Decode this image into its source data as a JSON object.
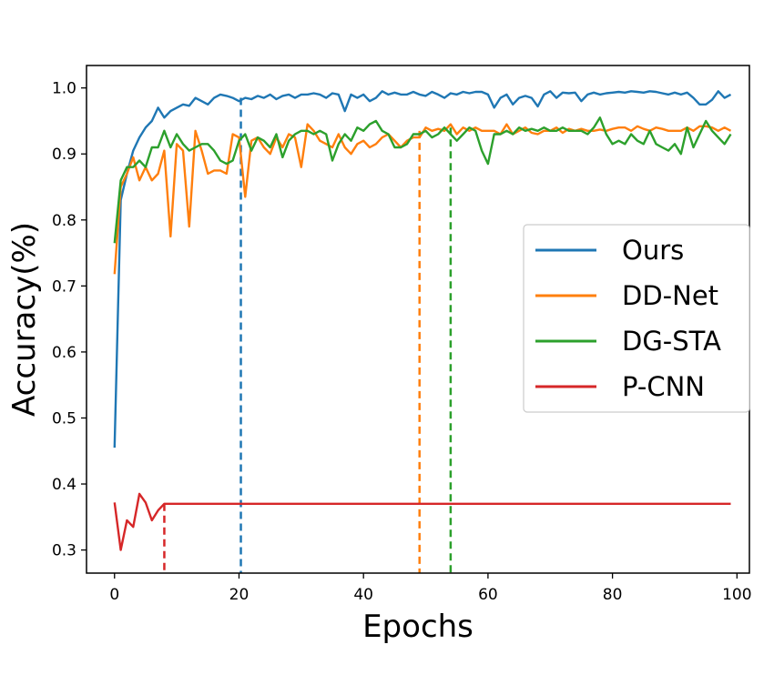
{
  "chart_data": {
    "type": "line",
    "title": "",
    "xlabel": "Epochs",
    "ylabel": "Accuracy(%)",
    "xlim": [
      -4.5,
      102
    ],
    "ylim": [
      0.265,
      1.034
    ],
    "xticks": [
      0,
      20,
      40,
      60,
      80,
      100
    ],
    "yticks": [
      0.3,
      0.4,
      0.5,
      0.6,
      0.7,
      0.8,
      0.9,
      1.0
    ],
    "xtick_labels": [
      "0",
      "20",
      "40",
      "60",
      "80",
      "100"
    ],
    "ytick_labels": [
      "0.3",
      "0.4",
      "0.5",
      "0.6",
      "0.7",
      "0.8",
      "0.9",
      "1.0"
    ],
    "grid": false,
    "legend_position": "right",
    "series": [
      {
        "name": "Ours",
        "color": "#1f77b4",
        "values": [
          0.455,
          0.83,
          0.87,
          0.905,
          0.925,
          0.94,
          0.95,
          0.97,
          0.955,
          0.965,
          0.97,
          0.975,
          0.973,
          0.985,
          0.98,
          0.975,
          0.985,
          0.99,
          0.988,
          0.985,
          0.98,
          0.985,
          0.983,
          0.988,
          0.985,
          0.99,
          0.983,
          0.988,
          0.99,
          0.985,
          0.99,
          0.99,
          0.992,
          0.99,
          0.985,
          0.992,
          0.99,
          0.965,
          0.99,
          0.985,
          0.99,
          0.98,
          0.985,
          0.995,
          0.99,
          0.993,
          0.99,
          0.99,
          0.994,
          0.99,
          0.988,
          0.994,
          0.99,
          0.985,
          0.992,
          0.99,
          0.994,
          0.992,
          0.994,
          0.994,
          0.99,
          0.97,
          0.985,
          0.99,
          0.975,
          0.985,
          0.988,
          0.985,
          0.972,
          0.99,
          0.995,
          0.985,
          0.993,
          0.992,
          0.993,
          0.98,
          0.99,
          0.993,
          0.99,
          0.992,
          0.993,
          0.994,
          0.993,
          0.995,
          0.994,
          0.993,
          0.995,
          0.994,
          0.992,
          0.99,
          0.993,
          0.99,
          0.993,
          0.985,
          0.975,
          0.975,
          0.982,
          0.995,
          0.985,
          0.99
        ]
      },
      {
        "name": "DD-Net",
        "color": "#ff7f0e",
        "values": [
          0.718,
          0.85,
          0.87,
          0.895,
          0.86,
          0.88,
          0.86,
          0.87,
          0.905,
          0.775,
          0.915,
          0.905,
          0.79,
          0.935,
          0.905,
          0.87,
          0.875,
          0.875,
          0.87,
          0.93,
          0.925,
          0.835,
          0.92,
          0.925,
          0.91,
          0.9,
          0.925,
          0.91,
          0.93,
          0.925,
          0.88,
          0.945,
          0.935,
          0.92,
          0.915,
          0.91,
          0.93,
          0.91,
          0.9,
          0.915,
          0.92,
          0.91,
          0.915,
          0.925,
          0.93,
          0.92,
          0.91,
          0.92,
          0.925,
          0.925,
          0.94,
          0.935,
          0.938,
          0.935,
          0.945,
          0.93,
          0.94,
          0.935,
          0.94,
          0.935,
          0.935,
          0.935,
          0.93,
          0.945,
          0.93,
          0.935,
          0.94,
          0.932,
          0.93,
          0.935,
          0.935,
          0.94,
          0.932,
          0.938,
          0.935,
          0.938,
          0.935,
          0.935,
          0.937,
          0.935,
          0.938,
          0.94,
          0.94,
          0.935,
          0.942,
          0.938,
          0.935,
          0.94,
          0.938,
          0.935,
          0.935,
          0.935,
          0.94,
          0.935,
          0.942,
          0.942,
          0.94,
          0.935,
          0.94,
          0.935
        ]
      },
      {
        "name": "DG-STA",
        "color": "#2ca02c",
        "values": [
          0.765,
          0.86,
          0.88,
          0.88,
          0.89,
          0.88,
          0.91,
          0.91,
          0.935,
          0.91,
          0.93,
          0.915,
          0.905,
          0.91,
          0.915,
          0.915,
          0.905,
          0.89,
          0.885,
          0.89,
          0.92,
          0.93,
          0.905,
          0.925,
          0.92,
          0.91,
          0.93,
          0.895,
          0.92,
          0.93,
          0.935,
          0.935,
          0.93,
          0.935,
          0.93,
          0.89,
          0.915,
          0.93,
          0.92,
          0.94,
          0.935,
          0.945,
          0.95,
          0.935,
          0.93,
          0.91,
          0.91,
          0.915,
          0.93,
          0.93,
          0.935,
          0.925,
          0.93,
          0.94,
          0.93,
          0.92,
          0.93,
          0.94,
          0.935,
          0.905,
          0.885,
          0.93,
          0.93,
          0.935,
          0.93,
          0.94,
          0.935,
          0.938,
          0.935,
          0.94,
          0.935,
          0.935,
          0.94,
          0.935,
          0.935,
          0.935,
          0.93,
          0.94,
          0.955,
          0.93,
          0.915,
          0.92,
          0.915,
          0.93,
          0.92,
          0.915,
          0.935,
          0.915,
          0.91,
          0.905,
          0.915,
          0.9,
          0.94,
          0.91,
          0.93,
          0.95,
          0.935,
          0.925,
          0.915,
          0.93
        ]
      },
      {
        "name": "P-CNN",
        "color": "#d62728",
        "values": [
          0.372,
          0.3,
          0.345,
          0.335,
          0.385,
          0.372,
          0.345,
          0.36,
          0.37,
          0.37,
          0.37,
          0.37,
          0.37,
          0.37,
          0.37,
          0.37,
          0.37,
          0.37,
          0.37,
          0.37,
          0.37,
          0.37,
          0.37,
          0.37,
          0.37,
          0.37,
          0.37,
          0.37,
          0.37,
          0.37,
          0.37,
          0.37,
          0.37,
          0.37,
          0.37,
          0.37,
          0.37,
          0.37,
          0.37,
          0.37,
          0.37,
          0.37,
          0.37,
          0.37,
          0.37,
          0.37,
          0.37,
          0.37,
          0.37,
          0.37,
          0.37,
          0.37,
          0.37,
          0.37,
          0.37,
          0.37,
          0.37,
          0.37,
          0.37,
          0.37,
          0.37,
          0.37,
          0.37,
          0.37,
          0.37,
          0.37,
          0.37,
          0.37,
          0.37,
          0.37,
          0.37,
          0.37,
          0.37,
          0.37,
          0.37,
          0.37,
          0.37,
          0.37,
          0.37,
          0.37,
          0.37,
          0.37,
          0.37,
          0.37,
          0.37,
          0.37,
          0.37,
          0.37,
          0.37,
          0.37,
          0.37,
          0.37,
          0.37,
          0.37,
          0.37,
          0.37,
          0.37,
          0.37,
          0.37,
          0.37
        ]
      }
    ],
    "markers": [
      {
        "series": "Ours",
        "x": 20.3,
        "y": 0.985,
        "color": "#1f77b4"
      },
      {
        "series": "DD-Net",
        "x": 49,
        "y": 0.935,
        "color": "#ff7f0e"
      },
      {
        "series": "DG-STA",
        "x": 54,
        "y": 0.94,
        "color": "#2ca02c"
      },
      {
        "series": "P-CNN",
        "x": 8,
        "y": 0.37,
        "color": "#d62728"
      }
    ]
  }
}
